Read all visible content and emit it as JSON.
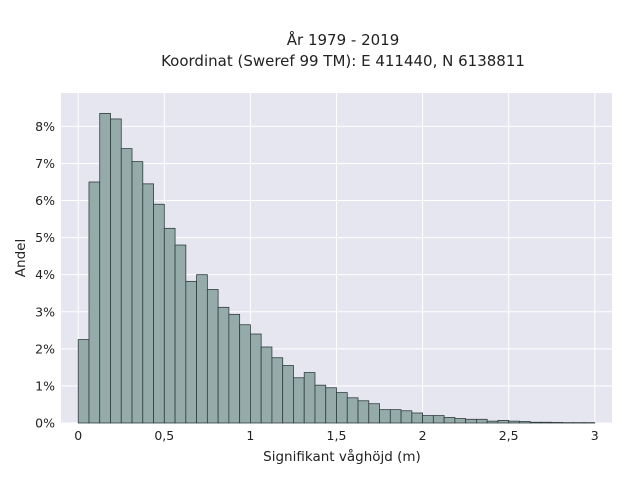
{
  "chart_data": {
    "type": "bar",
    "title": "År 1979 - 2019",
    "subtitle": "Koordinat (Sweref 99 TM): E 411440, N 6138811",
    "xlabel": "Signifikant våghöjd (m)",
    "ylabel": "Andel",
    "xlim": [
      -0.1,
      3.1
    ],
    "ylim": [
      0,
      8.9
    ],
    "x_ticks": [
      0,
      0.5,
      1,
      1.5,
      2,
      2.5,
      3
    ],
    "x_tick_labels": [
      "0",
      "0,5",
      "1",
      "1,5",
      "2",
      "2,5",
      "3"
    ],
    "y_ticks": [
      0,
      1,
      2,
      3,
      4,
      5,
      6,
      7,
      8
    ],
    "y_tick_labels": [
      "0%",
      "1%",
      "2%",
      "3%",
      "4%",
      "5%",
      "6%",
      "7%",
      "8%"
    ],
    "bin_width": 0.0625,
    "bin_start": 0,
    "values": [
      2.25,
      6.5,
      8.35,
      8.2,
      7.4,
      7.05,
      6.45,
      5.9,
      5.25,
      4.8,
      3.82,
      4.0,
      3.6,
      3.12,
      2.93,
      2.65,
      2.4,
      2.05,
      1.76,
      1.55,
      1.22,
      1.36,
      1.02,
      0.95,
      0.82,
      0.68,
      0.6,
      0.52,
      0.36,
      0.36,
      0.33,
      0.27,
      0.2,
      0.2,
      0.15,
      0.12,
      0.1,
      0.1,
      0.05,
      0.07,
      0.05,
      0.04,
      0.02,
      0.02,
      0.015,
      0.01,
      0.01,
      0.01
    ],
    "grid": true,
    "colors": {
      "bar_fill": "#95abaa",
      "bar_edge": "#2f3d3c",
      "plot_bg": "#e6e6f1",
      "grid": "#ffffff"
    }
  }
}
